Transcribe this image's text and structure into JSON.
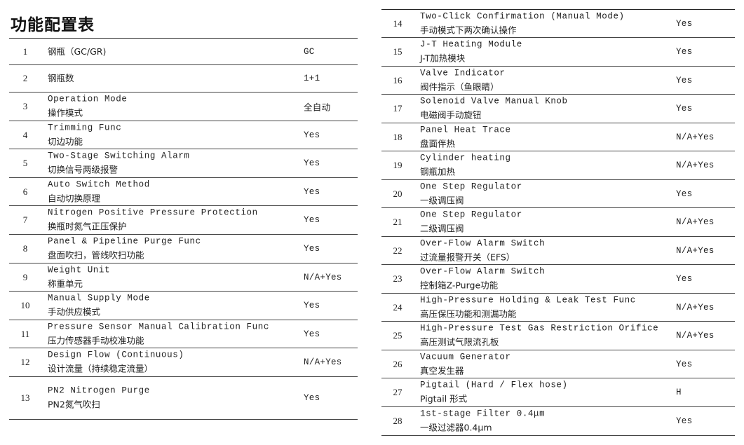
{
  "title": "功能配置表",
  "rows": [
    {
      "no": "1",
      "en": "",
      "zh": "钢瓶（GC/GR)",
      "value": "GC"
    },
    {
      "no": "2",
      "en": "",
      "zh": "钢瓶数",
      "value": "1+1"
    },
    {
      "no": "3",
      "en": "Operation Mode",
      "zh": "操作模式",
      "value": "全自动"
    },
    {
      "no": "4",
      "en": "Trimming Func",
      "zh": "切边功能",
      "value": "Yes"
    },
    {
      "no": "5",
      "en": "Two-Stage Switching Alarm",
      "zh": "切换信号两级报警",
      "value": "Yes"
    },
    {
      "no": "6",
      "en": "Auto Switch Method",
      "zh": "自动切换原理",
      "value": "Yes"
    },
    {
      "no": "7",
      "en": "Nitrogen Positive Pressure Protection",
      "zh": "换瓶时氮气正压保护",
      "value": "Yes"
    },
    {
      "no": "8",
      "en": "Panel & Pipeline Purge Func",
      "zh": "盘面吹扫，管线吹扫功能",
      "value": "Yes"
    },
    {
      "no": "9",
      "en": "Weight Unit",
      "zh": "称重单元",
      "value": "N/A+Yes"
    },
    {
      "no": "10",
      "en": "Manual Supply Mode",
      "zh": "手动供应模式",
      "value": "Yes"
    },
    {
      "no": "11",
      "en": "Pressure Sensor Manual Calibration Func",
      "zh": "压力传感器手动校准功能",
      "value": "Yes"
    },
    {
      "no": "12",
      "en": "Design Flow (Continuous)",
      "zh": "设计流量（持续稳定流量）",
      "value": "N/A+Yes"
    },
    {
      "no": "13",
      "en": "PN2 Nitrogen Purge",
      "zh": "PN2氮气吹扫",
      "value": "Yes"
    },
    {
      "no": "14",
      "en": "Two-Click Confirmation (Manual Mode)",
      "zh": "手动模式下两次确认操作",
      "value": "Yes"
    },
    {
      "no": "15",
      "en": "J-T Heating Module",
      "zh": "J-T加热模块",
      "value": "Yes"
    },
    {
      "no": "16",
      "en": "Valve Indicator",
      "zh": "阀件指示（鱼眼睛）",
      "value": "Yes"
    },
    {
      "no": "17",
      "en": "Solenoid Valve Manual Knob",
      "zh": "电磁阀手动旋钮",
      "value": "Yes"
    },
    {
      "no": "18",
      "en": "Panel Heat Trace",
      "zh": "盘面伴热",
      "value": "N/A+Yes"
    },
    {
      "no": "19",
      "en": "Cylinder heating",
      "zh": "钢瓶加热",
      "value": "N/A+Yes"
    },
    {
      "no": "20",
      "en": "One Step Regulator",
      "zh": "一级调压阀",
      "value": "Yes"
    },
    {
      "no": "21",
      "en": "One Step Regulator",
      "zh": "二级调压阀",
      "value": "N/A+Yes"
    },
    {
      "no": "22",
      "en": "Over-Flow Alarm Switch",
      "zh": "过流量报警开关（EFS）",
      "value": "N/A+Yes"
    },
    {
      "no": "23",
      "en": "Over-Flow Alarm Switch",
      "zh": "控制箱Z-Purge功能",
      "value": "Yes"
    },
    {
      "no": "24",
      "en": "High-Pressure Holding & Leak Test Func",
      "zh": "高压保压功能和测漏功能",
      "value": "N/A+Yes"
    },
    {
      "no": "25",
      "en": "High-Pressure Test Gas Restriction Orifice",
      "zh": "高压测试气限流孔板",
      "value": "N/A+Yes"
    },
    {
      "no": "26",
      "en": "Vacuum Generator",
      "zh": "真空发生器",
      "value": "Yes"
    },
    {
      "no": "27",
      "en": "Pigtail (Hard / Flex hose)",
      "zh": "Pigtail 形式",
      "value": "H"
    },
    {
      "no": "28",
      "en": "1st-stage Filter 0.4μm",
      "zh": "一级过滤器0.4μm",
      "value": "Yes"
    }
  ]
}
